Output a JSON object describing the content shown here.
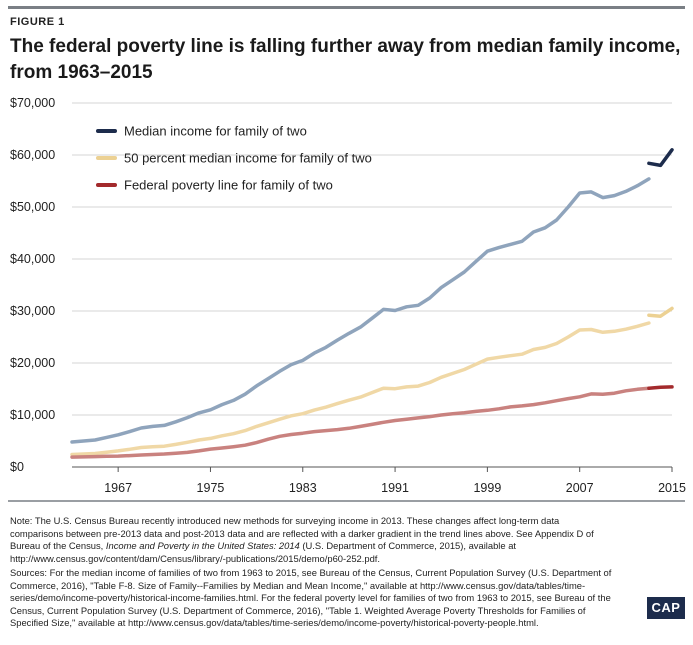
{
  "figure_label": "FIGURE 1",
  "title": "The federal poverty line is falling further away from median family income, from 1963–2015",
  "note": {
    "part1": "Note: The U.S. Census Bureau recently introduced new methods for surveying income in 2013. These changes affect long-term data comparisons between pre-2013 data and post-2013 data and are reflected with a darker gradient in the trend lines above. See Appendix D of Bureau of the Census, ",
    "italic": "Income and Poverty in the United States: 2014",
    "part2": " (U.S. Department of Commerce, 2015), available at http://www.census.gov/content/dam/Census/library/-publications/2015/demo/p60-252.pdf."
  },
  "sources": "Sources: For the median income of families of two from 1963 to 2015, see Bureau of the Census, Current Population Survey (U.S. Department of Commerce, 2016), \"Table F-8. Size of Family--Families by Median and Mean Income,\" available at http://www.census.gov/data/tables/time-series/demo/income-poverty/historical-income-families.html. For the federal poverty level for families of two from 1963 to 2015, see Bureau of the Census, Current Population Survey (U.S. Department of Commerce, 2016), \"Table 1. Weighted Average Poverty Thresholds for Families of Specified Size,\" available at http://www.census.gov/data/tables/time-series/demo/income-poverty/historical-poverty-people.html.",
  "logo_text": "CAP",
  "chart_data": {
    "type": "line",
    "title": "The federal poverty line is falling further away from median family income, from 1963–2015",
    "xlabel": "",
    "ylabel": "",
    "xlim": [
      1963,
      2015
    ],
    "ylim": [
      0,
      70000
    ],
    "x_ticks": [
      1967,
      1975,
      1983,
      1991,
      1999,
      2007,
      2015
    ],
    "y_ticks": [
      0,
      10000,
      20000,
      30000,
      40000,
      50000,
      60000,
      70000
    ],
    "y_tick_labels": [
      "$0",
      "$10,000",
      "$20,000",
      "$30,000",
      "$40,000",
      "$50,000",
      "$60,000",
      "$70,000"
    ],
    "grid": "horizontal",
    "legend_position": "top-left",
    "series": [
      {
        "name": "Median income for family of two",
        "color": "#8fa4bc",
        "color_post2013": "#1d2c4c",
        "legend_color": "#1d2c4c",
        "x": [
          1963,
          1964,
          1965,
          1966,
          1967,
          1968,
          1969,
          1970,
          1971,
          1972,
          1973,
          1974,
          1975,
          1976,
          1977,
          1978,
          1979,
          1980,
          1981,
          1982,
          1983,
          1984,
          1985,
          1986,
          1987,
          1988,
          1989,
          1990,
          1991,
          1992,
          1993,
          1994,
          1995,
          1996,
          1997,
          1998,
          1999,
          2000,
          2001,
          2002,
          2003,
          2004,
          2005,
          2006,
          2007,
          2008,
          2009,
          2010,
          2011,
          2012,
          2013
        ],
        "values": [
          4800,
          5000,
          5200,
          5700,
          6200,
          6800,
          7500,
          7800,
          8000,
          8700,
          9500,
          10400,
          11000,
          12000,
          12800,
          14000,
          15600,
          17000,
          18400,
          19700,
          20500,
          21900,
          23000,
          24400,
          25700,
          26900,
          28600,
          30300,
          30100,
          30800,
          31100,
          32500,
          34500,
          36000,
          37500,
          39500,
          41500,
          42200,
          42800,
          43400,
          45200,
          46000,
          47500,
          50000,
          52700,
          52900,
          51800,
          52200,
          53000,
          54100,
          55400
        ],
        "x_post2013": [
          2013,
          2014,
          2015
        ],
        "values_post2013": [
          58400,
          58000,
          61000
        ]
      },
      {
        "name": "50 percent median income for family of two",
        "color": "#f0d8a6",
        "color_post2013": "#ecd193",
        "legend_color": "#ecd193",
        "x": [
          1963,
          1964,
          1965,
          1966,
          1967,
          1968,
          1969,
          1970,
          1971,
          1972,
          1973,
          1974,
          1975,
          1976,
          1977,
          1978,
          1979,
          1980,
          1981,
          1982,
          1983,
          1984,
          1985,
          1986,
          1987,
          1988,
          1989,
          1990,
          1991,
          1992,
          1993,
          1994,
          1995,
          1996,
          1997,
          1998,
          1999,
          2000,
          2001,
          2002,
          2003,
          2004,
          2005,
          2006,
          2007,
          2008,
          2009,
          2010,
          2011,
          2012,
          2013
        ],
        "values": [
          2400,
          2500,
          2600,
          2850,
          3100,
          3400,
          3750,
          3900,
          4000,
          4350,
          4750,
          5200,
          5500,
          6000,
          6400,
          7000,
          7800,
          8500,
          9200,
          9850,
          10250,
          10950,
          11500,
          12200,
          12850,
          13450,
          14300,
          15150,
          15050,
          15400,
          15550,
          16250,
          17250,
          18000,
          18750,
          19750,
          20750,
          21100,
          21400,
          21700,
          22600,
          23000,
          23750,
          25000,
          26350,
          26450,
          25900,
          26100,
          26500,
          27050,
          27700
        ],
        "x_post2013": [
          2013,
          2014,
          2015
        ],
        "values_post2013": [
          29200,
          29000,
          30500
        ]
      },
      {
        "name": "Federal poverty line for family of two",
        "color": "#c9827f",
        "color_post2013": "#a32a2c",
        "legend_color": "#a32a2c",
        "x": [
          1963,
          1964,
          1965,
          1966,
          1967,
          1968,
          1969,
          1970,
          1971,
          1972,
          1973,
          1974,
          1975,
          1976,
          1977,
          1978,
          1979,
          1980,
          1981,
          1982,
          1983,
          1984,
          1985,
          1986,
          1987,
          1988,
          1989,
          1990,
          1991,
          1992,
          1993,
          1994,
          1995,
          1996,
          1997,
          1998,
          1999,
          2000,
          2001,
          2002,
          2003,
          2004,
          2005,
          2006,
          2007,
          2008,
          2009,
          2010,
          2011,
          2012,
          2013
        ],
        "values": [
          1900,
          1950,
          2000,
          2050,
          2100,
          2200,
          2300,
          2400,
          2500,
          2650,
          2800,
          3100,
          3450,
          3650,
          3900,
          4200,
          4700,
          5350,
          5900,
          6250,
          6500,
          6800,
          7000,
          7200,
          7450,
          7800,
          8200,
          8600,
          8950,
          9200,
          9450,
          9700,
          10000,
          10250,
          10450,
          10700,
          10900,
          11200,
          11550,
          11750,
          12000,
          12350,
          12750,
          13150,
          13500,
          14050,
          14000,
          14200,
          14650,
          14950,
          15150
        ],
        "x_post2013": [
          2013,
          2014,
          2015
        ],
        "values_post2013": [
          15150,
          15350,
          15400
        ]
      }
    ]
  }
}
